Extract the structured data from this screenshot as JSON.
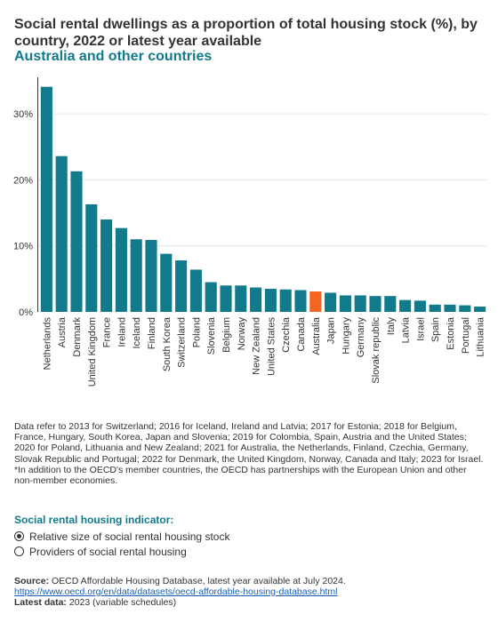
{
  "header": {
    "title": "Social rental dwellings as a proportion of total housing stock (%), by country, 2022 or latest year available",
    "subtitle": "Australia and other countries"
  },
  "colors": {
    "bar": "#117a8b",
    "highlight": "#f26522",
    "accent": "#117a8b"
  },
  "chart_data": {
    "type": "bar",
    "title": "Social rental dwellings as a proportion of total housing stock (%), by country, 2022 or latest year available",
    "subtitle": "Australia and other countries",
    "xlabel": "",
    "ylabel": "",
    "ylim": [
      0,
      35
    ],
    "yticks": [
      0,
      10,
      20,
      30
    ],
    "ytick_labels": [
      "0%",
      "10%",
      "20%",
      "30%"
    ],
    "grid": true,
    "highlight_category": "Australia",
    "categories": [
      "Netherlands",
      "Austria",
      "Denmark",
      "United Kingdom",
      "France",
      "Ireland",
      "Iceland",
      "Finland",
      "South Korea",
      "Switzerland",
      "Poland",
      "Slovenia",
      "Belgium",
      "Norway",
      "New Zealand",
      "United States",
      "Czechia",
      "Canada",
      "Australia",
      "Japan",
      "Hungary",
      "Germany",
      "Slovak republic",
      "Italy",
      "Latvia",
      "Israel",
      "Spain",
      "Estonia",
      "Portugal",
      "Lithuania"
    ],
    "values": [
      34.1,
      23.6,
      21.3,
      16.3,
      14.0,
      12.7,
      11.0,
      10.9,
      8.8,
      7.8,
      6.4,
      4.5,
      4.0,
      4.0,
      3.7,
      3.5,
      3.4,
      3.3,
      3.1,
      2.9,
      2.5,
      2.5,
      2.4,
      2.4,
      1.8,
      1.7,
      1.1,
      1.1,
      1.0,
      0.8
    ]
  },
  "notes": {
    "text": "Data refer to 2013 for Switzerland; 2016 for Iceland, Ireland and Latvia; 2017 for Estonia; 2018 for Belgium, France, Hungary, South Korea, Japan and Slovenia; 2019 for Colombia, Spain, Austria and the United States; 2020 for Poland, Lithuania and New Zealand; 2021 for Australia, the Netherlands, Finland, Czechia, Germany, Slovak Republic and Portugal; 2022 for Denmark, the United Kingdom, Norway, Canada and Italy; 2023 for Israel.",
    "footnote": "*In addition to the OECD's member countries, the OECD has partnerships with the European Union and other non-member economies."
  },
  "indicator": {
    "label": "Social rental housing indicator:",
    "options": [
      {
        "label": "Relative size of social rental housing stock",
        "selected": true
      },
      {
        "label": "Providers of social rental housing",
        "selected": false
      }
    ]
  },
  "footer": {
    "source_label": "Source:",
    "source_text": " OECD Affordable Housing Database, latest year available at July 2024.",
    "link": "https://www.oecd.org/en/data/datasets/oecd-affordable-housing-database.html",
    "latest_label": "Latest data:",
    "latest_text": " 2023 (variable schedules)"
  }
}
